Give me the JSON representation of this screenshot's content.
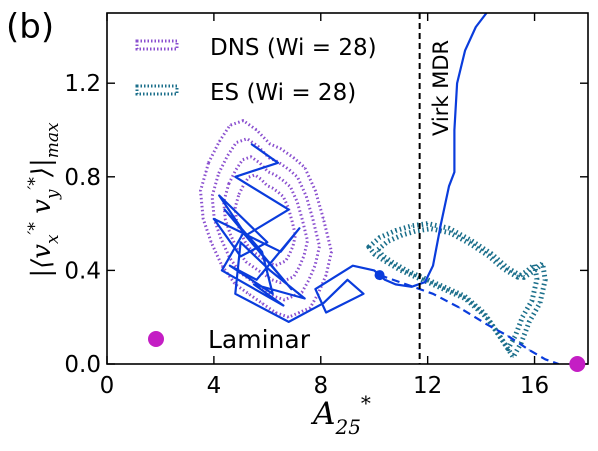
{
  "chart_data": {
    "type": "line",
    "panel_label": "(b)",
    "xlabel": "A*25",
    "ylabel": "|⟨v′*x v′*y⟩|max",
    "xlim": [
      0,
      18
    ],
    "ylim": [
      0,
      1.5
    ],
    "x_ticks": [
      {
        "value": 0,
        "label": "0"
      },
      {
        "value": 4,
        "label": "4"
      },
      {
        "value": 8,
        "label": "8"
      },
      {
        "value": 12,
        "label": "12"
      },
      {
        "value": 16,
        "label": "16"
      }
    ],
    "y_ticks": [
      {
        "value": 0.0,
        "label": "0.0"
      },
      {
        "value": 0.4,
        "label": "0.4"
      },
      {
        "value": 0.8,
        "label": "0.8"
      },
      {
        "value": 1.2,
        "label": "1.2"
      }
    ],
    "legend": [
      {
        "label": "DNS (Wi = 28)",
        "color": "#8a4fcf",
        "style": "dotted"
      },
      {
        "label": "ES (Wi = 28)",
        "color": "#1a6e8a",
        "style": "dotted"
      }
    ],
    "annotations": {
      "virk_label": "Virk MDR",
      "laminar_label": "Laminar",
      "virk_x": 11.7
    },
    "laminar_point": {
      "x": 17.6,
      "y": 0.0,
      "color": "#c41ec4"
    },
    "colors": {
      "dns": "#8a4fcf",
      "es": "#1a6e8a",
      "traj": "#0a3cdc",
      "laminar": "#c41ec4"
    },
    "series": [
      {
        "name": "traj",
        "x": [
          5.4,
          6.4,
          4.8,
          6.8,
          5.2,
          4.2,
          6.0,
          5.0,
          4.0,
          6.5,
          7.2,
          5.6,
          4.6,
          6.2,
          5.8,
          4.4,
          6.9,
          5.1,
          4.3,
          6.6,
          5.5,
          7.4,
          6.1,
          5.0,
          4.8,
          6.8,
          8.1,
          9.0,
          9.6,
          8.2,
          7.8,
          9.2,
          10.0,
          10.4,
          10.8,
          11.4,
          11.9,
          12.2,
          12.5,
          12.8,
          13.0,
          13.0,
          13.1,
          13.4,
          13.8,
          14.2
        ],
        "y": [
          0.94,
          0.86,
          0.8,
          0.66,
          0.55,
          0.72,
          0.52,
          0.46,
          0.62,
          0.48,
          0.58,
          0.36,
          0.42,
          0.3,
          0.48,
          0.66,
          0.32,
          0.56,
          0.4,
          0.25,
          0.34,
          0.28,
          0.4,
          0.52,
          0.3,
          0.18,
          0.26,
          0.36,
          0.3,
          0.22,
          0.32,
          0.42,
          0.4,
          0.36,
          0.34,
          0.33,
          0.35,
          0.42,
          0.6,
          0.76,
          0.82,
          1.0,
          1.2,
          1.34,
          1.44,
          1.5
        ]
      },
      {
        "name": "DNS (Wi = 28)",
        "x": [
          3.8,
          4.2,
          4.6,
          5.1,
          5.6,
          6.1,
          6.5,
          7.0,
          7.4,
          7.8,
          8.1,
          8.4,
          8.2,
          7.9,
          7.6,
          7.2,
          6.8,
          6.3,
          5.8,
          5.3,
          4.8,
          4.3,
          3.9,
          3.6,
          3.5,
          3.7
        ],
        "y": [
          0.86,
          0.95,
          1.02,
          1.04,
          1.0,
          0.94,
          0.92,
          0.88,
          0.84,
          0.74,
          0.62,
          0.48,
          0.38,
          0.3,
          0.24,
          0.22,
          0.2,
          0.22,
          0.26,
          0.3,
          0.34,
          0.42,
          0.52,
          0.62,
          0.74,
          0.82
        ]
      },
      {
        "name": "ES (Wi = 28)",
        "x": [
          9.8,
          10.2,
          10.8,
          11.4,
          12.0,
          12.8,
          13.6,
          14.4,
          15.0,
          15.6,
          16.0,
          16.3,
          16.4,
          16.2,
          15.8,
          15.5,
          15.2,
          14.8,
          14.2,
          13.4,
          12.6,
          11.8,
          11.0,
          10.4,
          10.0,
          9.8
        ],
        "y": [
          0.5,
          0.54,
          0.57,
          0.59,
          0.6,
          0.58,
          0.53,
          0.47,
          0.41,
          0.37,
          0.4,
          0.43,
          0.36,
          0.26,
          0.18,
          0.09,
          0.03,
          0.1,
          0.2,
          0.28,
          0.32,
          0.36,
          0.4,
          0.44,
          0.47,
          0.5
        ]
      },
      {
        "name": "ES-dashed",
        "x": [
          10.2,
          11.2,
          12.2,
          13.2,
          14.2,
          15.0,
          15.8,
          16.4,
          16.9
        ],
        "y": [
          0.38,
          0.34,
          0.3,
          0.24,
          0.17,
          0.12,
          0.06,
          0.02,
          0.0
        ]
      }
    ]
  }
}
